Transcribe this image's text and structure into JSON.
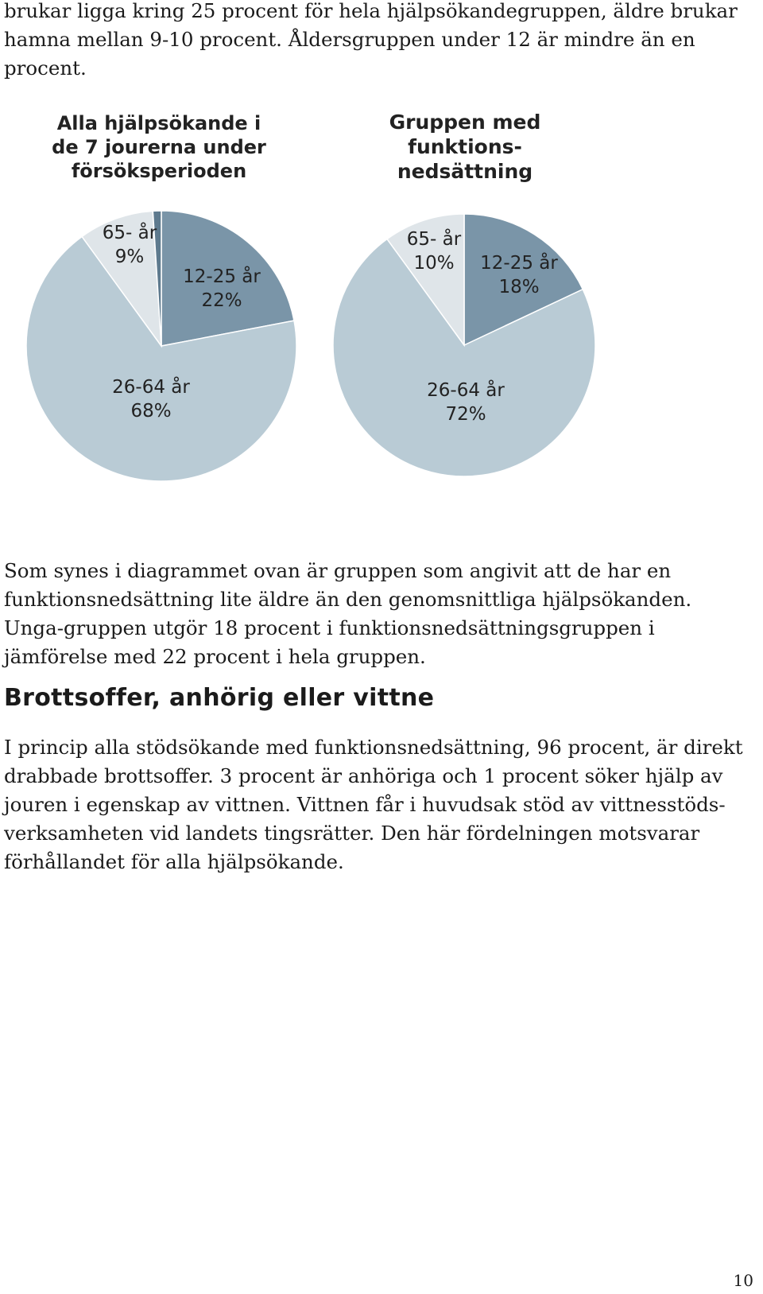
{
  "intro_text": "brukar ligga kring 25 procent för hela hjälpsökandegruppen, äldre brukar hamna mellan 9-10 procent. Åldersgruppen under 12 är mindre än en procent.",
  "chart_data": [
    {
      "type": "pie",
      "title_lines": [
        "Alla hjälpsökande i",
        "de 7 jourerna under",
        "försöksperioden"
      ],
      "slices": [
        {
          "label": "12-25 år",
          "value": 22,
          "value_label": "22%",
          "color": "#7a95a8"
        },
        {
          "label": "26-64 år",
          "value": 68,
          "value_label": "68%",
          "color": "#b9cbd5"
        },
        {
          "label": "65- år",
          "value": 9,
          "value_label": "9%",
          "color": "#dfe5e9"
        },
        {
          "label": "",
          "value": 1,
          "value_label": "",
          "color": "#5e7a8e"
        }
      ]
    },
    {
      "type": "pie",
      "title_lines": [
        "Gruppen med",
        "funktions-",
        "nedsättning"
      ],
      "slices": [
        {
          "label": "12-25 år",
          "value": 18,
          "value_label": "18%",
          "color": "#7a95a8"
        },
        {
          "label": "26-64 år",
          "value": 72,
          "value_label": "72%",
          "color": "#b9cbd5"
        },
        {
          "label": "65- år",
          "value": 10,
          "value_label": "10%",
          "color": "#dfe5e9"
        }
      ]
    }
  ],
  "paragraph_1": "Som synes i diagrammet ovan är gruppen som angivit att de har en funktionsnedsättning lite äldre än den genomsnittliga hjälpsökanden. Unga-gruppen utgör 18 procent i funktionsnedsättningsgruppen i jämförelse med 22 procent i hela gruppen.",
  "heading": "Brottsoffer, anhörig eller vittne",
  "paragraph_2": "I princip alla stödsökande med funktionsnedsättning, 96 procent, är direkt drabbade brottsoffer. 3 procent är anhöriga och 1 procent söker hjälp av jouren i egenskap av vittnen. Vittnen får i huvudsak stöd av vittnesstöds-verksamheten vid landets tingsrätter. Den här fördelningen motsvarar förhållandet för alla hjälpsökande.",
  "page_number": "10"
}
